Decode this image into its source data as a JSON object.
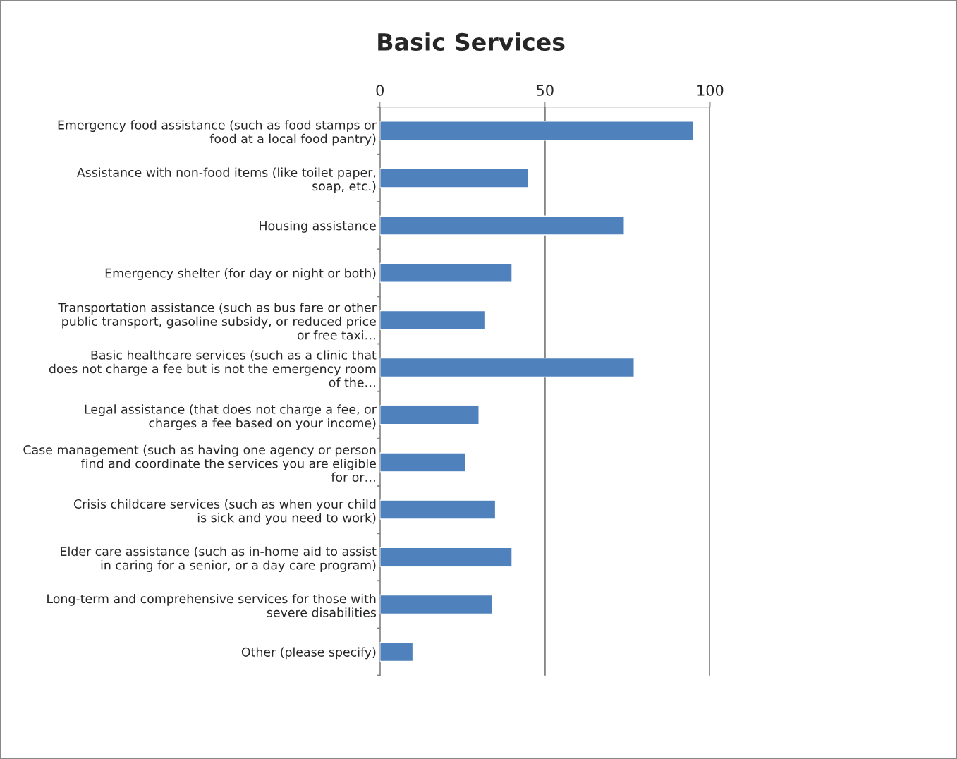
{
  "chart_data": {
    "type": "bar",
    "orientation": "horizontal",
    "title": "Basic Services",
    "categories": [
      "Emergency food assistance (such as food stamps or food at a local food pantry)",
      "Assistance with non-food items (like toilet paper, soap, etc.)",
      "Housing assistance",
      "Emergency shelter (for day or night or both)",
      "Transportation assistance (such as bus fare or other public transport, gasoline subsidy, or reduced price or free taxi…",
      "Basic healthcare services (such as a clinic that does not charge a fee but is not the emergency room of the…",
      "Legal assistance (that does not charge a fee, or charges a fee based on your income)",
      "Case management (such as having one agency or person find and coordinate the services you are eligible for or…",
      "Crisis childcare services (such as when your child is sick and you need to work)",
      "Elder care assistance (such as in-home aid to assist in caring for a senior, or a day care program)",
      "Long-term and comprehensive services for those with severe disabilities",
      "Other (please specify)"
    ],
    "values": [
      95,
      45,
      74,
      40,
      32,
      77,
      30,
      26,
      35,
      40,
      34,
      10
    ],
    "color": "#4f81bd",
    "xlim": [
      0,
      100
    ],
    "xticks": [
      0,
      50,
      100
    ],
    "grid": "x",
    "legend": false
  }
}
